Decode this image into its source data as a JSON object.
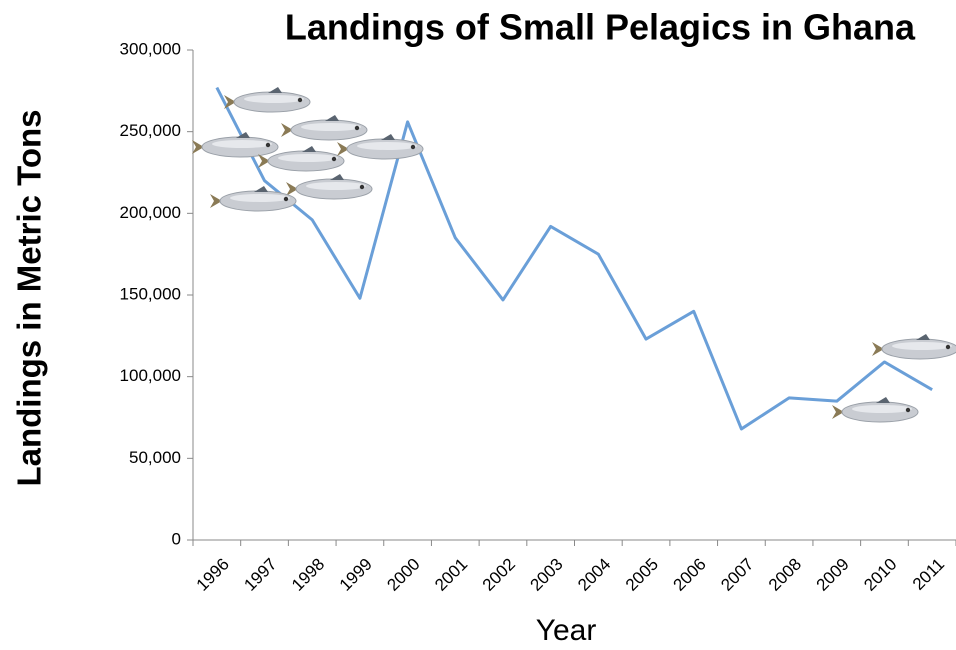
{
  "chart_data": {
    "type": "line",
    "title": "Landings of Small Pelagics in Ghana",
    "x_label": "Year",
    "y_label": "Landings in Metric Tons",
    "categories": [
      "1996",
      "1997",
      "1998",
      "1999",
      "2000",
      "2001",
      "2002",
      "2003",
      "2004",
      "2005",
      "2006",
      "2007",
      "2008",
      "2009",
      "2010",
      "2011"
    ],
    "values": [
      277000,
      220000,
      196000,
      148000,
      256000,
      185000,
      147000,
      192000,
      175000,
      123000,
      140000,
      68000,
      87000,
      85000,
      109000,
      92000
    ],
    "color": "#6a9fd8",
    "ylim": [
      0,
      300000
    ],
    "yticks": [
      0,
      {
        "value": 50000,
        "label": "50,000"
      },
      {
        "value": 100000,
        "label": "100,000"
      },
      {
        "value": 150000,
        "label": "150,000"
      },
      {
        "value": 200000,
        "label": "200,000"
      },
      {
        "value": 250000,
        "label": "250,000"
      },
      {
        "value": 300000,
        "label": "300,000"
      }
    ]
  }
}
